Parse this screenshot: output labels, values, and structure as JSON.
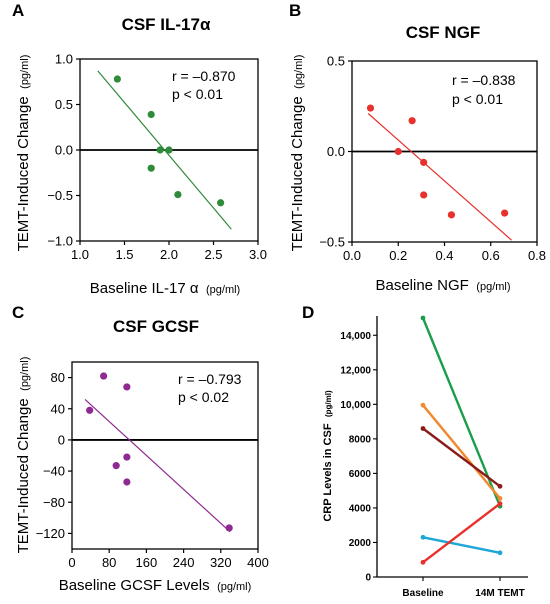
{
  "figure": {
    "panels": [
      {
        "letter": "A",
        "title": "CSF IL-17α",
        "r_text": "r = –0.870",
        "p_text": "p < 0.01"
      },
      {
        "letter": "B",
        "title": "CSF NGF",
        "r_text": "r = –0.838",
        "p_text": "p < 0.01"
      },
      {
        "letter": "C",
        "title": "CSF GCSF",
        "r_text": "r = –0.793",
        "p_text": "p < 0.02"
      },
      {
        "letter": "D"
      }
    ],
    "ylabel_main": "TEMT-Induced Change",
    "ylabel_unit": "(pg/ml)",
    "xlabel_A_main": "Baseline IL-17 α",
    "xlabel_B_main": "Baseline NGF",
    "xlabel_C_main": "Baseline GCSF Levels",
    "xlabel_unit": "(pg/ml)",
    "ylabel_D_main": "CRP Levels in CSF",
    "ylabel_D_unit": "(pg/ml)"
  },
  "chart_data": [
    {
      "type": "scatter",
      "title": "CSF IL-17α",
      "xlabel": "Baseline IL-17 α (pg/ml)",
      "ylabel": "TEMT-Induced Change (pg/ml)",
      "xlim": [
        1.0,
        3.0
      ],
      "ylim": [
        -1.0,
        1.0
      ],
      "xticks": [
        1.0,
        1.5,
        2.0,
        2.5,
        3.0
      ],
      "yticks": [
        -1.0,
        -0.5,
        0.0,
        0.5,
        1.0
      ],
      "points": [
        [
          1.42,
          0.78
        ],
        [
          1.8,
          0.39
        ],
        [
          1.8,
          -0.2
        ],
        [
          1.9,
          0.0
        ],
        [
          2.0,
          0.0
        ],
        [
          2.1,
          -0.49
        ],
        [
          2.58,
          -0.58
        ]
      ],
      "fit": [
        [
          1.2,
          0.87
        ],
        [
          2.7,
          -0.87
        ]
      ],
      "r": "r = –0.870",
      "p": "p < 0.01",
      "color": "#2e8b3a"
    },
    {
      "type": "scatter",
      "title": "CSF NGF",
      "xlabel": "Baseline NGF (pg/ml)",
      "ylabel": "TEMT-Induced Change (pg/ml)",
      "xlim": [
        0.0,
        0.8
      ],
      "ylim": [
        -0.5,
        0.5
      ],
      "xticks": [
        0.0,
        0.2,
        0.4,
        0.6,
        0.8
      ],
      "yticks": [
        -0.5,
        0.0,
        0.5
      ],
      "points": [
        [
          0.08,
          0.24
        ],
        [
          0.2,
          0.0
        ],
        [
          0.26,
          0.17
        ],
        [
          0.31,
          -0.06
        ],
        [
          0.31,
          -0.24
        ],
        [
          0.43,
          -0.35
        ],
        [
          0.66,
          -0.34
        ]
      ],
      "fit": [
        [
          0.07,
          0.21
        ],
        [
          0.69,
          -0.49
        ]
      ],
      "r": "r = –0.838",
      "p": "p < 0.01",
      "color": "#e8312c"
    },
    {
      "type": "scatter",
      "title": "CSF GCSF",
      "xlabel": "Baseline GCSF Levels (pg/ml)",
      "ylabel": "TEMT-Induced Change (pg/ml)",
      "xlim": [
        0,
        400
      ],
      "ylim": [
        -140,
        100
      ],
      "xticks": [
        0,
        80,
        160,
        240,
        320,
        400
      ],
      "yticks": [
        -120,
        -80,
        -40,
        0,
        40,
        80
      ],
      "points": [
        [
          38,
          38
        ],
        [
          68,
          82
        ],
        [
          95,
          -33
        ],
        [
          118,
          68
        ],
        [
          118,
          -22
        ],
        [
          118,
          -54
        ],
        [
          338,
          -113
        ]
      ],
      "fit": [
        [
          28,
          52
        ],
        [
          340,
          -118
        ]
      ],
      "r": "r = –0.793",
      "p": "p < 0.02",
      "color": "#8e2a91"
    },
    {
      "type": "line",
      "ylabel": "CRP Levels in CSF (pg/ml)",
      "categories": [
        "Baseline",
        "14M TEMT"
      ],
      "ylim": [
        0,
        15000
      ],
      "yticks": [
        0,
        2000,
        4000,
        6000,
        8000,
        10000,
        12000,
        14000
      ],
      "ytick_labels": [
        "0",
        "2000",
        "4000",
        "6000",
        "8000",
        "10,000",
        "12,000",
        "14,000"
      ],
      "series": [
        {
          "values": [
            15000,
            4100
          ],
          "color": "#1a9e4b"
        },
        {
          "values": [
            9950,
            4550
          ],
          "color": "#f08a2e"
        },
        {
          "values": [
            8600,
            5250
          ],
          "color": "#8b1a1a"
        },
        {
          "values": [
            2300,
            1400
          ],
          "color": "#1ea6d6"
        },
        {
          "values": [
            850,
            4250
          ],
          "color": "#e8312c"
        }
      ]
    }
  ]
}
